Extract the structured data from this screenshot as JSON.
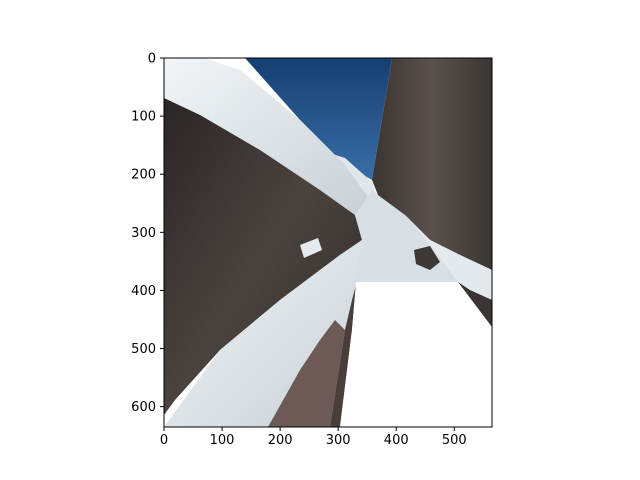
{
  "figure": {
    "background": "#ffffff",
    "image_semantic": "warped-panorama-of-snowy-rock-canyon",
    "colors": {
      "sky": "#1f4f86",
      "snow": "#e6ecf0",
      "rock": "#403a38",
      "rock_dark": "#2c2827"
    }
  },
  "axes": {
    "x_ticks": [
      "0",
      "100",
      "200",
      "300",
      "400",
      "500"
    ],
    "y_ticks": [
      "0",
      "100",
      "200",
      "300",
      "400",
      "500",
      "600"
    ],
    "x_range": [
      0,
      565
    ],
    "y_range": [
      0,
      635
    ]
  }
}
